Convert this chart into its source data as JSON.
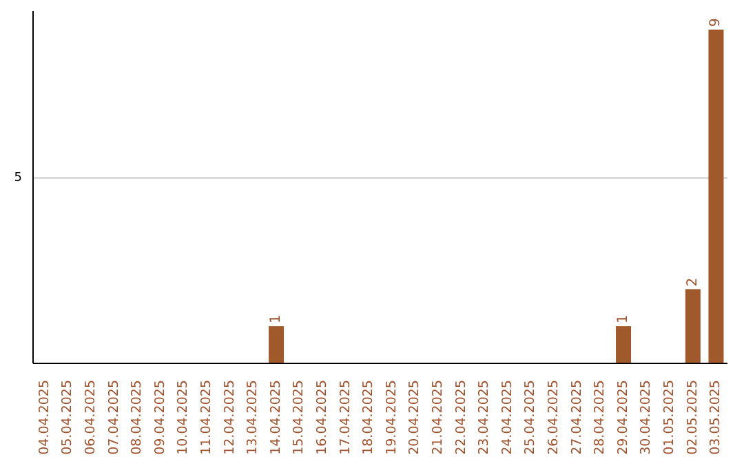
{
  "chart_data": {
    "type": "bar",
    "categories": [
      "04.04.2025",
      "05.04.2025",
      "06.04.2025",
      "07.04.2025",
      "08.04.2025",
      "09.04.2025",
      "10.04.2025",
      "11.04.2025",
      "12.04.2025",
      "13.04.2025",
      "14.04.2025",
      "15.04.2025",
      "16.04.2025",
      "17.04.2025",
      "18.04.2025",
      "19.04.2025",
      "20.04.2025",
      "21.04.2025",
      "22.04.2025",
      "23.04.2025",
      "24.04.2025",
      "25.04.2025",
      "26.04.2025",
      "27.04.2025",
      "28.04.2025",
      "29.04.2025",
      "30.04.2025",
      "01.05.2025",
      "02.05.2025",
      "03.05.2025"
    ],
    "values": [
      0,
      0,
      0,
      0,
      0,
      0,
      0,
      0,
      0,
      0,
      1,
      0,
      0,
      0,
      0,
      0,
      0,
      0,
      0,
      0,
      0,
      0,
      0,
      0,
      0,
      1,
      0,
      0,
      2,
      9
    ],
    "color": "#a0592a",
    "ylim": [
      0,
      9.5
    ],
    "yticks": [
      5
    ],
    "grid": "y",
    "value_labels": [
      null,
      null,
      null,
      null,
      null,
      null,
      null,
      null,
      null,
      null,
      "1",
      null,
      null,
      null,
      null,
      null,
      null,
      null,
      null,
      null,
      null,
      null,
      null,
      null,
      null,
      "1",
      null,
      null,
      "2",
      "9"
    ]
  }
}
